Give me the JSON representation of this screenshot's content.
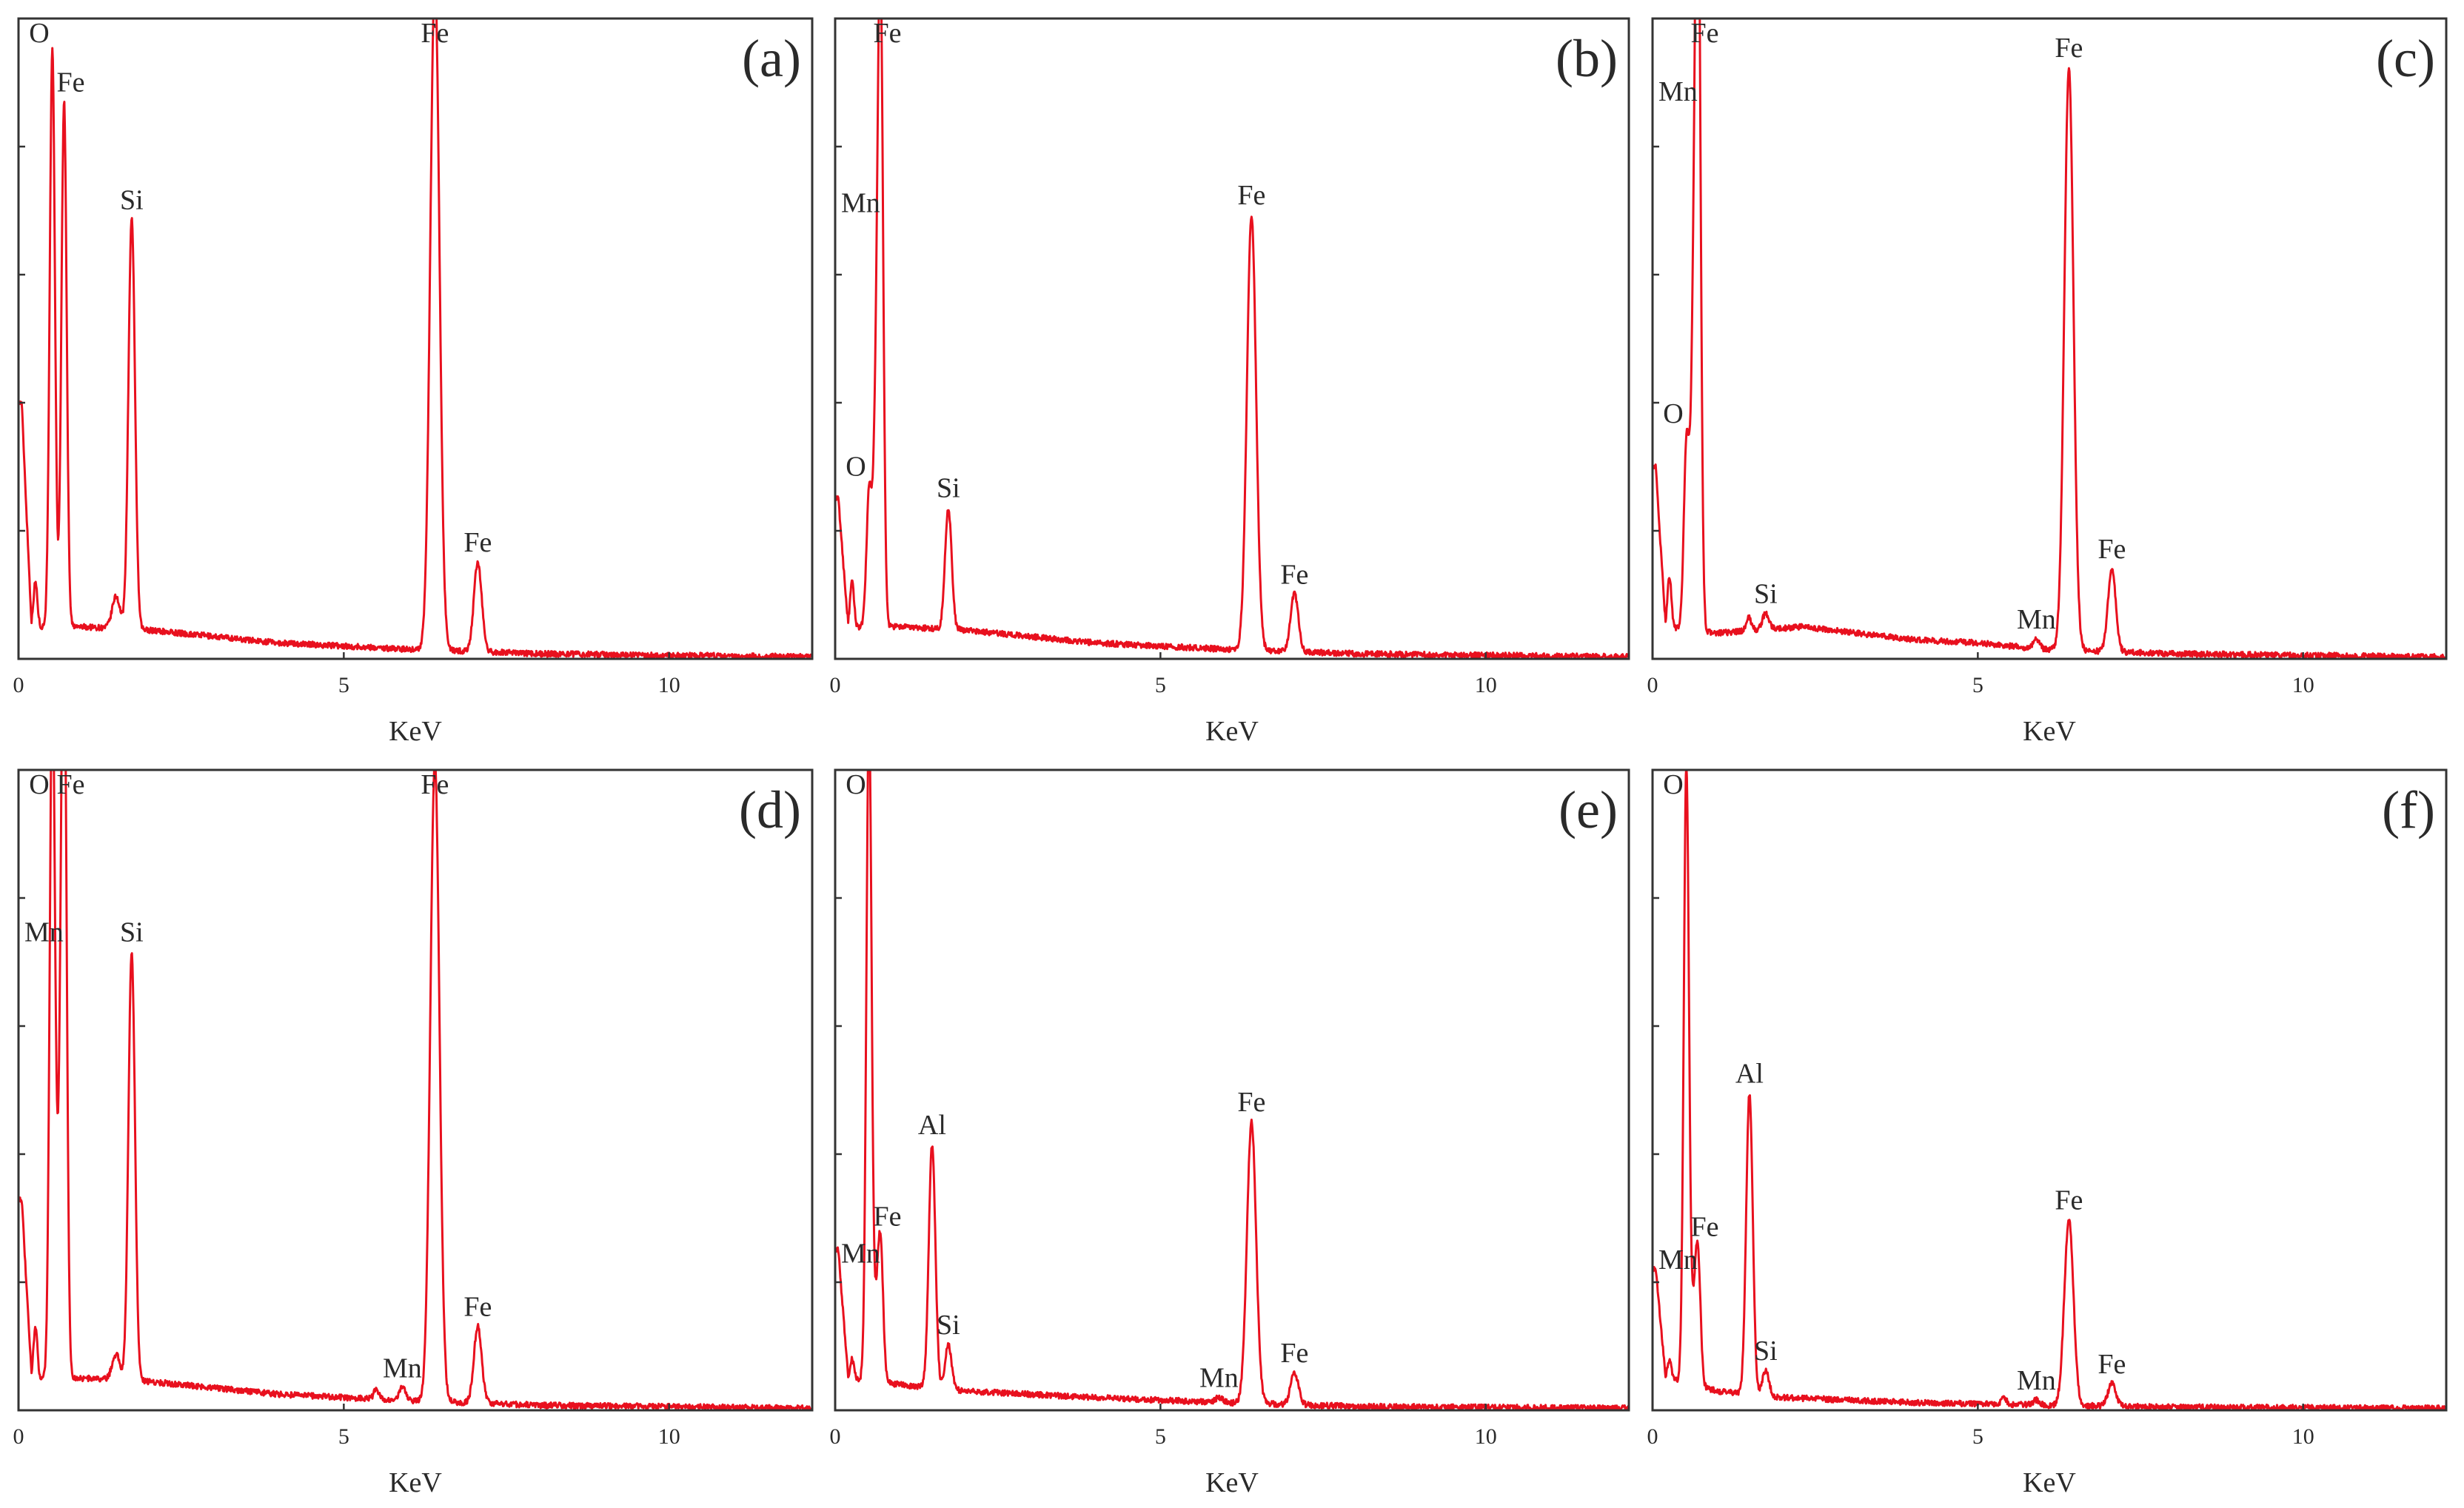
{
  "figure": {
    "line_color": "#e8101e",
    "frame_color": "#333333"
  },
  "chart_data": [
    {
      "type": "line",
      "panel_label": "(a)",
      "xlabel": "KeV",
      "xlim": [
        0,
        12.2
      ],
      "ylim": [
        0,
        100
      ],
      "x_ticks": [
        "0",
        "5",
        "10"
      ],
      "y_tick_values": [
        20,
        40,
        60,
        80
      ],
      "baseline": [
        [
          0.05,
          40
        ],
        [
          0.2,
          5
        ],
        [
          1.0,
          5
        ],
        [
          2.0,
          4.5
        ],
        [
          4.0,
          2.5
        ],
        [
          6.0,
          1.5
        ],
        [
          8.0,
          0.8
        ],
        [
          12.2,
          0.3
        ]
      ],
      "peaks": [
        {
          "x": 0.26,
          "h": 7,
          "w": 0.03
        },
        {
          "x": 0.52,
          "h": 90,
          "w": 0.04,
          "label": "O"
        },
        {
          "x": 0.7,
          "h": 82,
          "w": 0.04,
          "label": "Fe"
        },
        {
          "x": 1.5,
          "h": 5,
          "w": 0.06
        },
        {
          "x": 1.74,
          "h": 64,
          "w": 0.05,
          "label": "Si"
        },
        {
          "x": 6.4,
          "h": 105,
          "w": 0.07,
          "label": "Fe"
        },
        {
          "x": 7.06,
          "h": 14,
          "w": 0.06,
          "label": "Fe"
        }
      ]
    },
    {
      "type": "line",
      "panel_label": "(b)",
      "xlabel": "KeV",
      "xlim": [
        0,
        12.2
      ],
      "ylim": [
        0,
        100
      ],
      "x_ticks": [
        "0",
        "5",
        "10"
      ],
      "y_tick_values": [
        20,
        40,
        60,
        80
      ],
      "baseline": [
        [
          0.05,
          25
        ],
        [
          0.2,
          5
        ],
        [
          1.0,
          5
        ],
        [
          2.0,
          4.5
        ],
        [
          4.0,
          2.5
        ],
        [
          6.0,
          1.5
        ],
        [
          8.0,
          0.8
        ],
        [
          12.2,
          0.3
        ]
      ],
      "peaks": [
        {
          "x": 0.26,
          "h": 7,
          "w": 0.03
        },
        {
          "x": 0.52,
          "h": 20,
          "w": 0.04,
          "label": "O"
        },
        {
          "x": 0.64,
          "h": 35,
          "w": 0.05,
          "label": "Mn"
        },
        {
          "x": 0.7,
          "h": 86,
          "w": 0.04,
          "label": "Fe"
        },
        {
          "x": 1.74,
          "h": 19,
          "w": 0.05,
          "label": "Si"
        },
        {
          "x": 6.4,
          "h": 68,
          "w": 0.07,
          "label": "Fe"
        },
        {
          "x": 7.06,
          "h": 9,
          "w": 0.06,
          "label": "Fe"
        }
      ]
    },
    {
      "type": "line",
      "panel_label": "(c)",
      "xlabel": "KeV",
      "xlim": [
        0,
        12.2
      ],
      "ylim": [
        0,
        100
      ],
      "x_ticks": [
        "0",
        "5",
        "10"
      ],
      "y_tick_values": [
        20,
        40,
        60,
        80
      ],
      "baseline": [
        [
          0.05,
          30
        ],
        [
          0.2,
          5
        ],
        [
          1.0,
          4
        ],
        [
          1.6,
          4.5
        ],
        [
          2.3,
          5
        ],
        [
          4.0,
          3
        ],
        [
          5.0,
          2.5
        ],
        [
          6.0,
          1.5
        ],
        [
          8.0,
          0.8
        ],
        [
          12.2,
          0.3
        ]
      ],
      "peaks": [
        {
          "x": 0.26,
          "h": 8,
          "w": 0.03
        },
        {
          "x": 0.52,
          "h": 28,
          "w": 0.04,
          "label": "O"
        },
        {
          "x": 0.64,
          "h": 47,
          "w": 0.05,
          "label": "Mn"
        },
        {
          "x": 0.7,
          "h": 104,
          "w": 0.04,
          "label": "Fe"
        },
        {
          "x": 1.48,
          "h": 2,
          "w": 0.04
        },
        {
          "x": 1.74,
          "h": 2.5,
          "w": 0.05,
          "label": "Si"
        },
        {
          "x": 5.9,
          "h": 1.5,
          "w": 0.05,
          "label": "Mn"
        },
        {
          "x": 6.4,
          "h": 91,
          "w": 0.07,
          "label": "Fe"
        },
        {
          "x": 7.06,
          "h": 13,
          "w": 0.06,
          "label": "Fe"
        }
      ]
    },
    {
      "type": "line",
      "panel_label": "(d)",
      "xlabel": "KeV",
      "xlim": [
        0,
        12.2
      ],
      "ylim": [
        0,
        100
      ],
      "x_ticks": [
        "0",
        "5",
        "10"
      ],
      "y_tick_values": [
        20,
        40,
        60,
        80
      ],
      "baseline": [
        [
          0.05,
          33
        ],
        [
          0.2,
          5
        ],
        [
          1.0,
          5
        ],
        [
          2.0,
          4.5
        ],
        [
          4.0,
          2.5
        ],
        [
          6.0,
          1.5
        ],
        [
          8.0,
          0.8
        ],
        [
          12.2,
          0.3
        ]
      ],
      "peaks": [
        {
          "x": 0.26,
          "h": 8,
          "w": 0.03
        },
        {
          "x": 0.52,
          "h": 109,
          "w": 0.04,
          "label": "O"
        },
        {
          "x": 0.64,
          "h": 30,
          "w": 0.05,
          "label": "Mn"
        },
        {
          "x": 0.7,
          "h": 109,
          "w": 0.04,
          "label": "Fe"
        },
        {
          "x": 1.5,
          "h": 4,
          "w": 0.06
        },
        {
          "x": 1.74,
          "h": 67,
          "w": 0.05,
          "label": "Si"
        },
        {
          "x": 5.5,
          "h": 1.5,
          "w": 0.04
        },
        {
          "x": 5.9,
          "h": 2,
          "w": 0.05,
          "label": "Mn"
        },
        {
          "x": 6.4,
          "h": 100,
          "w": 0.07,
          "label": "Fe"
        },
        {
          "x": 7.06,
          "h": 12,
          "w": 0.06,
          "label": "Fe"
        }
      ]
    },
    {
      "type": "line",
      "panel_label": "(e)",
      "xlabel": "KeV",
      "xlim": [
        0,
        12.2
      ],
      "ylim": [
        0,
        100
      ],
      "x_ticks": [
        "0",
        "5",
        "10"
      ],
      "y_tick_values": [
        20,
        40,
        60,
        80
      ],
      "baseline": [
        [
          0.05,
          25
        ],
        [
          0.2,
          5
        ],
        [
          1.0,
          4
        ],
        [
          2.0,
          3
        ],
        [
          4.0,
          2
        ],
        [
          6.0,
          1.2
        ],
        [
          8.0,
          0.6
        ],
        [
          12.2,
          0.3
        ]
      ],
      "peaks": [
        {
          "x": 0.26,
          "h": 3,
          "w": 0.03
        },
        {
          "x": 0.52,
          "h": 104,
          "w": 0.04,
          "label": "O"
        },
        {
          "x": 0.64,
          "h": 10,
          "w": 0.05,
          "label": "Mn"
        },
        {
          "x": 0.7,
          "h": 18,
          "w": 0.04,
          "label": "Fe"
        },
        {
          "x": 1.49,
          "h": 38,
          "w": 0.05,
          "label": "Al"
        },
        {
          "x": 1.74,
          "h": 7,
          "w": 0.05,
          "label": "Si"
        },
        {
          "x": 5.9,
          "h": 0.8,
          "w": 0.05,
          "label": "Mn"
        },
        {
          "x": 6.4,
          "h": 44,
          "w": 0.07,
          "label": "Fe"
        },
        {
          "x": 7.06,
          "h": 5,
          "w": 0.06,
          "label": "Fe"
        }
      ]
    },
    {
      "type": "line",
      "panel_label": "(f)",
      "xlabel": "KeV",
      "xlim": [
        0,
        12.2
      ],
      "ylim": [
        0,
        100
      ],
      "x_ticks": [
        "0",
        "5",
        "10"
      ],
      "y_tick_values": [
        20,
        40,
        60,
        80
      ],
      "baseline": [
        [
          0.05,
          22
        ],
        [
          0.2,
          5
        ],
        [
          1.0,
          3
        ],
        [
          2.0,
          2
        ],
        [
          4.0,
          1.2
        ],
        [
          6.0,
          0.8
        ],
        [
          8.0,
          0.5
        ],
        [
          12.2,
          0.3
        ]
      ],
      "peaks": [
        {
          "x": 0.26,
          "h": 3,
          "w": 0.03
        },
        {
          "x": 0.52,
          "h": 96,
          "w": 0.04,
          "label": "O"
        },
        {
          "x": 0.64,
          "h": 10,
          "w": 0.05,
          "label": "Mn"
        },
        {
          "x": 0.7,
          "h": 17,
          "w": 0.04,
          "label": "Fe"
        },
        {
          "x": 1.49,
          "h": 47,
          "w": 0.05,
          "label": "Al"
        },
        {
          "x": 1.74,
          "h": 4,
          "w": 0.05,
          "label": "Si"
        },
        {
          "x": 5.4,
          "h": 1,
          "w": 0.04
        },
        {
          "x": 5.9,
          "h": 0.8,
          "w": 0.05,
          "label": "Mn"
        },
        {
          "x": 6.4,
          "h": 29,
          "w": 0.07,
          "label": "Fe"
        },
        {
          "x": 7.06,
          "h": 3.5,
          "w": 0.06,
          "label": "Fe"
        }
      ]
    }
  ]
}
